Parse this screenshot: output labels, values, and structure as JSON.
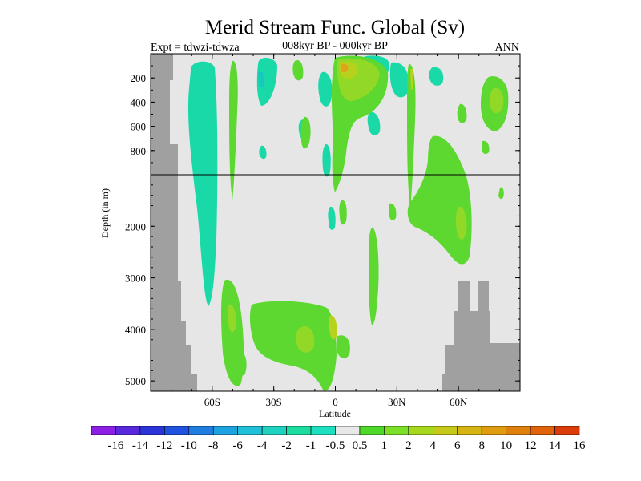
{
  "chart_data": {
    "type": "heatmap",
    "title": "Merid Stream Func. Global (Sv)",
    "left_label": "Expt = tdwzi-tdwza",
    "center_label": "008kyr BP - 000kyr BP",
    "right_label": "ANN",
    "xlabel": "Latitude",
    "ylabel": "Depth (in m)",
    "xlim": [
      -90,
      90
    ],
    "x_ticks": [
      -60,
      -30,
      0,
      30,
      60
    ],
    "x_tick_labels": [
      "60S",
      "30S",
      "0",
      "30N",
      "60N"
    ],
    "y_upper_ticks": [
      200,
      400,
      600,
      800
    ],
    "y_lower_ticks": [
      2000,
      3000,
      4000,
      5000
    ],
    "y_upper_range": [
      0,
      1000
    ],
    "y_lower_range": [
      1000,
      5200
    ],
    "reversed_y": true,
    "colorbar": {
      "labels": [
        "-16",
        "-14",
        "-12",
        "-10",
        "-8",
        "-6",
        "-4",
        "-2",
        "-1",
        "-0.5",
        "0.5",
        "1",
        "2",
        "4",
        "6",
        "8",
        "10",
        "12",
        "14",
        "16"
      ],
      "colors": [
        "#8c1ee6",
        "#5a28dc",
        "#2a34d8",
        "#1f52e0",
        "#1f7ee0",
        "#1fa2e0",
        "#1fc0d8",
        "#1fd2c0",
        "#1ddca0",
        "#1ee0c0",
        "#e8e8e8",
        "#4ed828",
        "#7ce028",
        "#a6d81e",
        "#c6c81a",
        "#d6b414",
        "#e09c10",
        "#e0800c",
        "#e0620a",
        "#dc3c08"
      ]
    },
    "colors": {
      "background": "#e6e6e6",
      "land": "#a0a0a0",
      "negative_field": "#1ad9a8",
      "weak_negative": "#16c8c0",
      "positive_1": "#5cd830",
      "positive_2": "#92d826",
      "positive_4": "#b6d21c",
      "positive_6": "#e0a41c"
    }
  }
}
